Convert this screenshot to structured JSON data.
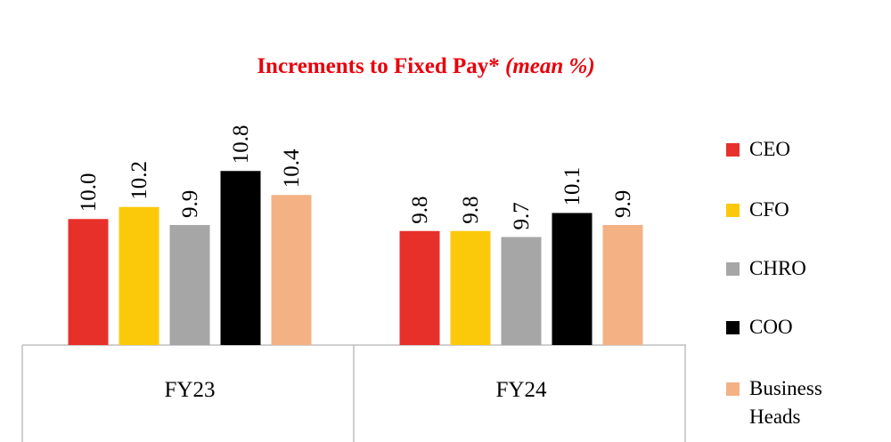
{
  "chart_data": {
    "type": "bar",
    "title": "Increments to Fixed Pay*",
    "title_unit": "(mean %)",
    "categories": [
      "FY23",
      "FY24"
    ],
    "series": [
      {
        "name": "CEO",
        "color": "#e8302a",
        "values": [
          10.0,
          9.8
        ],
        "value_labels": [
          "10.0",
          "9.8"
        ]
      },
      {
        "name": "CFO",
        "color": "#fbc90a",
        "values": [
          10.2,
          9.8
        ],
        "value_labels": [
          "10.2",
          "9.8"
        ]
      },
      {
        "name": "CHRO",
        "color": "#a6a6a6",
        "values": [
          9.9,
          9.7
        ],
        "value_labels": [
          "9.9",
          "9.7"
        ]
      },
      {
        "name": "COO",
        "color": "#000000",
        "values": [
          10.8,
          10.1
        ],
        "value_labels": [
          "10.8",
          "10.1"
        ]
      },
      {
        "name": "Business Heads",
        "color": "#f4b183",
        "values": [
          10.4,
          9.9
        ],
        "value_labels": [
          "10.4",
          "9.9"
        ]
      }
    ],
    "ylim": [
      7.9,
      11.5
    ],
    "legend": "right"
  }
}
